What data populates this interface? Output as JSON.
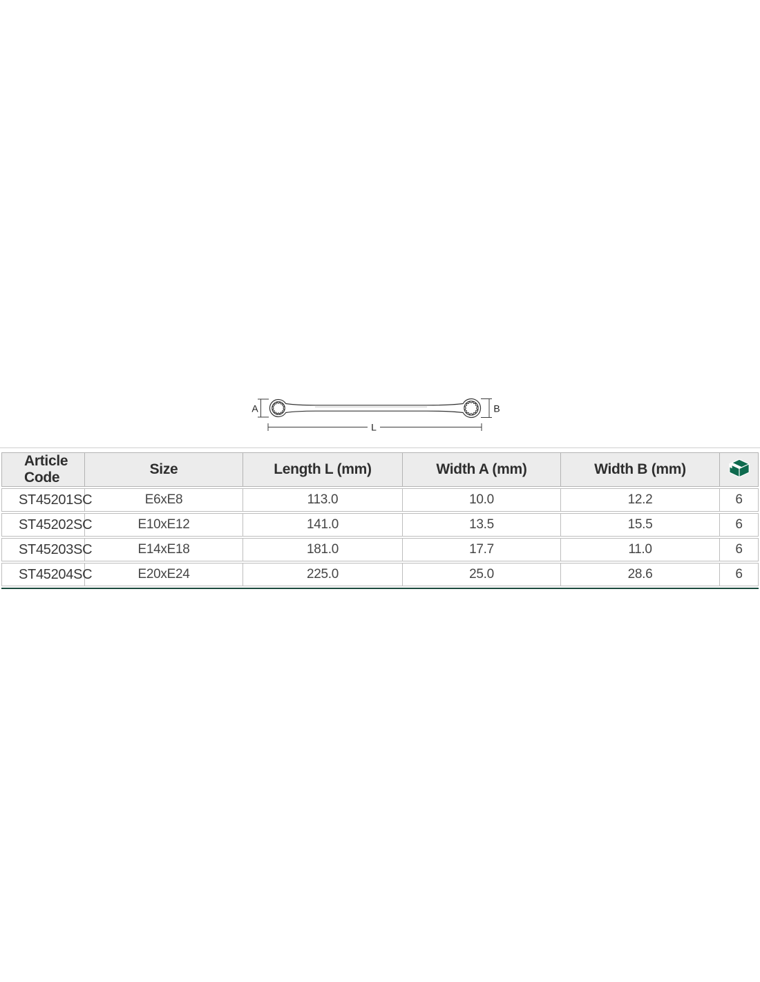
{
  "diagram": {
    "name": "double-box-end-wrench-drawing",
    "dim_label_a": "A",
    "dim_label_b": "B",
    "dim_label_l": "L"
  },
  "table": {
    "headers": {
      "article_code": "Article Code",
      "size": "Size",
      "length_l": "Length L (mm)",
      "width_a": "Width A (mm)",
      "width_b": "Width B (mm)",
      "pack_icon": "package-box-icon"
    },
    "rows": [
      {
        "article_code": "ST45201SC",
        "size": "E6xE8",
        "length_l": "113.0",
        "width_a": "10.0",
        "width_b": "12.2",
        "pack_qty": "6"
      },
      {
        "article_code": "ST45202SC",
        "size": "E10xE12",
        "length_l": "141.0",
        "width_a": "13.5",
        "width_b": "15.5",
        "pack_qty": "6"
      },
      {
        "article_code": "ST45203SC",
        "size": "E14xE18",
        "length_l": "181.0",
        "width_a": "17.7",
        "width_b": "11.0",
        "pack_qty": "6"
      },
      {
        "article_code": "ST45204SC",
        "size": "E20xE24",
        "length_l": "225.0",
        "width_a": "25.0",
        "width_b": "28.6",
        "pack_qty": "6"
      }
    ]
  },
  "colors": {
    "accent_green": "#0e6a4e",
    "bottom_rule_green": "#1a4b3d",
    "header_bg": "#ececec",
    "border_gray": "#b3b3b3",
    "top_rule_gray": "#cfcfcf",
    "drawing_stroke": "#333333"
  }
}
